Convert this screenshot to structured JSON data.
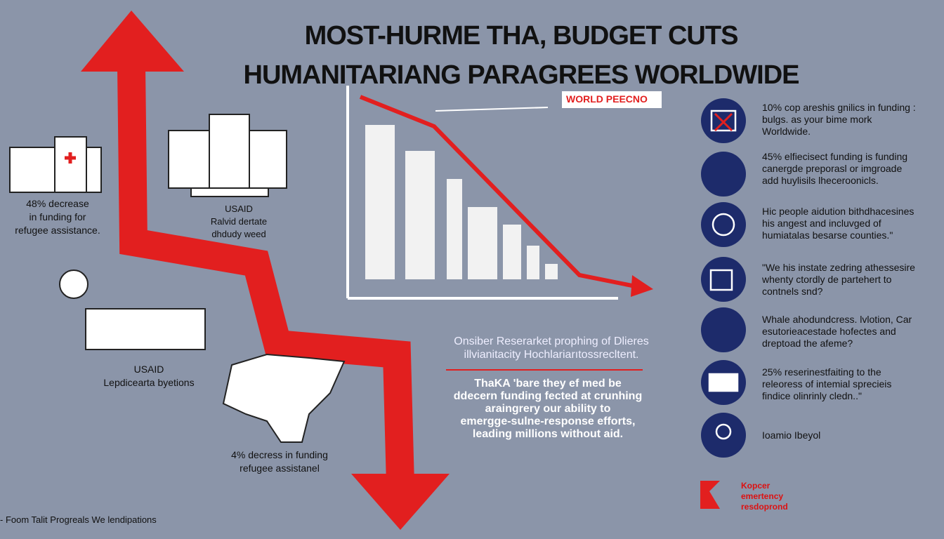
{
  "header": {
    "title_lines": [
      "MOST-HURME THA, BUDGET CUTS",
      "HUMANITARIANG PARAGREES WORLDWIDE"
    ]
  },
  "chart_badge": "WORLD PEECNO",
  "left_blocks": [
    {
      "lines": [
        "48% decrease",
        "in funding for",
        "refugee assistance."
      ]
    },
    {
      "lines": [
        "USAID",
        "Ralvid dertate",
        "dhdudy weed"
      ]
    },
    {
      "lines": [
        "USAID",
        "Lepdicearta byetions"
      ]
    },
    {
      "lines": [
        "4% decress in funding",
        "refugee assistanel"
      ]
    }
  ],
  "center": {
    "subtitle_lines": [
      "Onsiber Reserarket prophing of Dlieres",
      "illvianitacity Hochlariarıtossrecltent."
    ],
    "quote_lines": [
      "ThaKA 'bare they ef med be",
      "ddecern funding fected at crunhing",
      "araingrery our ability to",
      "emergge-sulne-response efforts,",
      "leading millions without aid."
    ]
  },
  "right_items": [
    {
      "lines": [
        "10% cop areshis gnilics in funding :",
        "bulgs. as your bime mork",
        "Worldwide."
      ]
    },
    {
      "lines": [
        "45% elfiecisect funding is funding",
        "canergde preporasl or imgroade",
        "add huylisils lheceroonicls."
      ]
    },
    {
      "lines": [
        "Hic people aidution bithdhacesines",
        "his angest and incluvged of",
        "humiatalas besarse counties.\""
      ]
    },
    {
      "lines": [
        "\"We his instate zedring athessesire",
        "whenty ctordly de partehert to",
        "contnels snd?"
      ]
    },
    {
      "lines": [
        "Whale ahodundcress. lvlotion, Car",
        "esutorieacestade hofectes and",
        "dreptoad the afeme?"
      ]
    },
    {
      "lines": [
        "25% reserinestfaiting to the",
        "releoress of intemial sprecieis",
        "findice olinrinly cledn..\""
      ]
    },
    {
      "lines": [
        "Ioamio Ibeyol"
      ]
    }
  ],
  "logo": {
    "lines": [
      "Kopcer",
      "emertency",
      "resdoprond"
    ]
  },
  "footer": "- Foom Talit Progreals We lendipations"
}
